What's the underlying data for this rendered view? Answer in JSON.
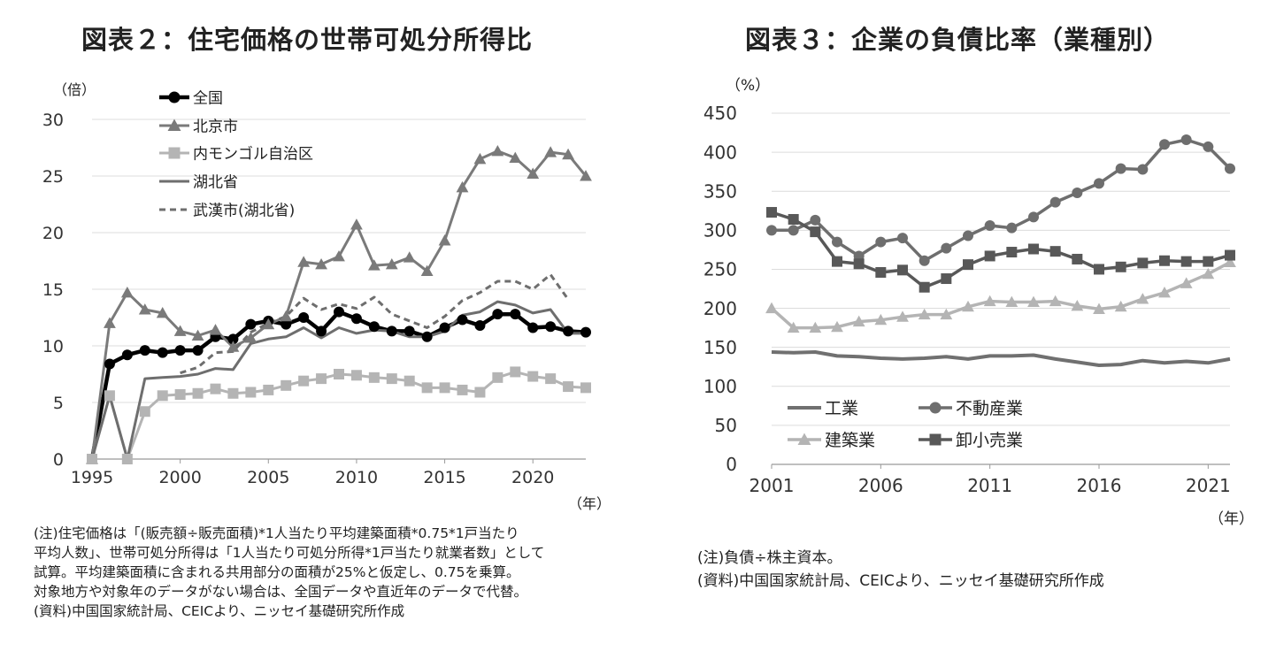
{
  "chart_data": [
    {
      "type": "line",
      "title": "図表２：住宅価格の世帯可処分所得比",
      "ylabel": "（倍）",
      "xlabel": "（年）",
      "ylim": [
        0,
        30
      ],
      "yticks": [
        0,
        5,
        10,
        15,
        20,
        25,
        30
      ],
      "xlim": [
        1995,
        2023
      ],
      "xticks": [
        1995,
        2000,
        2005,
        2010,
        2015,
        2020
      ],
      "legend_position": "top-left",
      "series": [
        {
          "name": "全国",
          "color": "#000000",
          "marker": "circle",
          "dash": false,
          "x": [
            1995,
            1996,
            1997,
            1998,
            1999,
            2000,
            2001,
            2002,
            2003,
            2004,
            2005,
            2006,
            2007,
            2008,
            2009,
            2010,
            2011,
            2012,
            2013,
            2014,
            2015,
            2016,
            2017,
            2018,
            2019,
            2020,
            2021,
            2022,
            2023
          ],
          "values": [
            0,
            8.4,
            9.2,
            9.6,
            9.4,
            9.6,
            9.6,
            10.8,
            10.6,
            11.9,
            12.2,
            11.9,
            12.5,
            11.3,
            13.0,
            12.4,
            11.7,
            11.3,
            11.3,
            10.8,
            11.6,
            12.3,
            11.8,
            12.8,
            12.8,
            11.6,
            11.7,
            11.3,
            11.2
          ]
        },
        {
          "name": "北京市",
          "color": "#7a7a7a",
          "marker": "triangle",
          "dash": false,
          "x": [
            1995,
            1996,
            1997,
            1998,
            1999,
            2000,
            2001,
            2002,
            2003,
            2004,
            2005,
            2006,
            2007,
            2008,
            2009,
            2010,
            2011,
            2012,
            2013,
            2014,
            2015,
            2016,
            2017,
            2018,
            2019,
            2020,
            2021,
            2022,
            2023
          ],
          "values": [
            0,
            12.0,
            14.7,
            13.2,
            12.9,
            11.3,
            10.9,
            11.4,
            9.9,
            10.7,
            11.9,
            12.6,
            17.4,
            17.2,
            17.9,
            20.7,
            17.1,
            17.2,
            17.8,
            16.6,
            19.3,
            24.0,
            26.5,
            27.2,
            26.6,
            25.2,
            27.1,
            26.9,
            25.0
          ]
        },
        {
          "name": "内モンゴル自治区",
          "color": "#b4b4b4",
          "marker": "square",
          "dash": false,
          "x": [
            1995,
            1996,
            1997,
            1998,
            1999,
            2000,
            2001,
            2002,
            2003,
            2004,
            2005,
            2006,
            2007,
            2008,
            2009,
            2010,
            2011,
            2012,
            2013,
            2014,
            2015,
            2016,
            2017,
            2018,
            2019,
            2020,
            2021,
            2022,
            2023
          ],
          "values": [
            0,
            5.6,
            0,
            4.2,
            5.6,
            5.7,
            5.8,
            6.2,
            5.8,
            5.9,
            6.1,
            6.5,
            6.9,
            7.1,
            7.5,
            7.4,
            7.2,
            7.1,
            6.9,
            6.3,
            6.3,
            6.1,
            5.9,
            7.2,
            7.7,
            7.3,
            7.1,
            6.4,
            6.3
          ]
        },
        {
          "name": "湖北省",
          "color": "#6e6e6e",
          "marker": "none",
          "dash": false,
          "x": [
            1995,
            1996,
            1997,
            1998,
            1999,
            2000,
            2001,
            2002,
            2003,
            2004,
            2005,
            2006,
            2007,
            2008,
            2009,
            2010,
            2011,
            2012,
            2013,
            2014,
            2015,
            2016,
            2017,
            2018,
            2019,
            2020,
            2021,
            2022,
            2023
          ],
          "values": [
            0,
            5.6,
            0,
            7.1,
            7.2,
            7.3,
            7.5,
            8.0,
            7.9,
            10.2,
            10.6,
            10.8,
            11.6,
            10.7,
            11.6,
            11.1,
            11.4,
            11.3,
            10.8,
            10.8,
            11.3,
            12.7,
            13.0,
            13.9,
            13.6,
            12.9,
            13.2,
            11.1,
            11.1
          ]
        },
        {
          "name": "武漢市(湖北省)",
          "color": "#6e6e6e",
          "marker": "none",
          "dash": true,
          "x": [
            2000,
            2001,
            2002,
            2003,
            2004,
            2005,
            2006,
            2007,
            2008,
            2009,
            2010,
            2011,
            2012,
            2013,
            2014,
            2015,
            2016,
            2017,
            2018,
            2019,
            2020,
            2021,
            2022
          ],
          "values": [
            7.6,
            8.1,
            9.4,
            9.5,
            11.2,
            12.0,
            12.6,
            14.2,
            13.2,
            13.7,
            13.3,
            14.3,
            12.8,
            12.2,
            11.6,
            12.6,
            14.0,
            14.7,
            15.7,
            15.7,
            15.0,
            16.3,
            14.1
          ]
        }
      ]
    },
    {
      "type": "line",
      "title": "図表３：企業の負債比率（業種別）",
      "ylabel": "（%）",
      "xlabel": "（年）",
      "ylim": [
        0,
        450
      ],
      "yticks": [
        0,
        50,
        100,
        150,
        200,
        250,
        300,
        350,
        400,
        450
      ],
      "xlim": [
        2001,
        2022
      ],
      "xticks": [
        2001,
        2006,
        2011,
        2016,
        2021
      ],
      "legend_position": "bottom-left",
      "series": [
        {
          "name": "工業",
          "color": "#707070",
          "marker": "none",
          "x": [
            2001,
            2002,
            2003,
            2004,
            2005,
            2006,
            2007,
            2008,
            2009,
            2010,
            2011,
            2012,
            2013,
            2014,
            2015,
            2016,
            2017,
            2018,
            2019,
            2020,
            2021,
            2022
          ],
          "values": [
            144,
            143,
            144,
            139,
            138,
            136,
            135,
            136,
            138,
            135,
            139,
            139,
            140,
            135,
            131,
            127,
            128,
            133,
            130,
            132,
            130,
            135
          ]
        },
        {
          "name": "不動産業",
          "color": "#6e6e6e",
          "marker": "circle",
          "x": [
            2001,
            2002,
            2003,
            2004,
            2005,
            2006,
            2007,
            2008,
            2009,
            2010,
            2011,
            2012,
            2013,
            2014,
            2015,
            2016,
            2017,
            2018,
            2019,
            2020,
            2021,
            2022
          ],
          "values": [
            300,
            300,
            313,
            285,
            267,
            285,
            290,
            261,
            277,
            293,
            306,
            303,
            317,
            336,
            348,
            360,
            379,
            378,
            410,
            416,
            407,
            379
          ]
        },
        {
          "name": "建築業",
          "color": "#b4b4b4",
          "marker": "triangle",
          "x": [
            2001,
            2002,
            2003,
            2004,
            2005,
            2006,
            2007,
            2008,
            2009,
            2010,
            2011,
            2012,
            2013,
            2014,
            2015,
            2016,
            2017,
            2018,
            2019,
            2020,
            2021,
            2022
          ],
          "values": [
            200,
            175,
            175,
            176,
            183,
            185,
            189,
            192,
            192,
            202,
            209,
            208,
            208,
            209,
            203,
            199,
            202,
            212,
            220,
            232,
            244,
            259
          ]
        },
        {
          "name": "卸小売業",
          "color": "#585858",
          "marker": "square",
          "x": [
            2001,
            2002,
            2003,
            2004,
            2005,
            2006,
            2007,
            2008,
            2009,
            2010,
            2011,
            2012,
            2013,
            2014,
            2015,
            2016,
            2017,
            2018,
            2019,
            2020,
            2021,
            2022
          ],
          "values": [
            323,
            314,
            298,
            260,
            257,
            246,
            249,
            227,
            238,
            256,
            267,
            272,
            276,
            273,
            263,
            250,
            253,
            258,
            261,
            260,
            260,
            268
          ]
        }
      ]
    }
  ],
  "notes_left": [
    "(注)住宅価格は「(販売額÷販売面積)*1人当たり平均建築面積*0.75*1戸当たり",
    "平均人数」、世帯可処分所得は「1人当たり可処分所得*1戸当たり就業者数」として",
    "試算。平均建築面積に含まれる共用部分の面積が25%と仮定し、0.75を乗算。",
    "対象地方や対象年のデータがない場合は、全国データや直近年のデータで代替。",
    "(資料)中国国家統計局、CEICより、ニッセイ基礎研究所作成"
  ],
  "notes_right": [
    "(注)負債÷株主資本。",
    "(資料)中国国家統計局、CEICより、ニッセイ基礎研究所作成"
  ]
}
